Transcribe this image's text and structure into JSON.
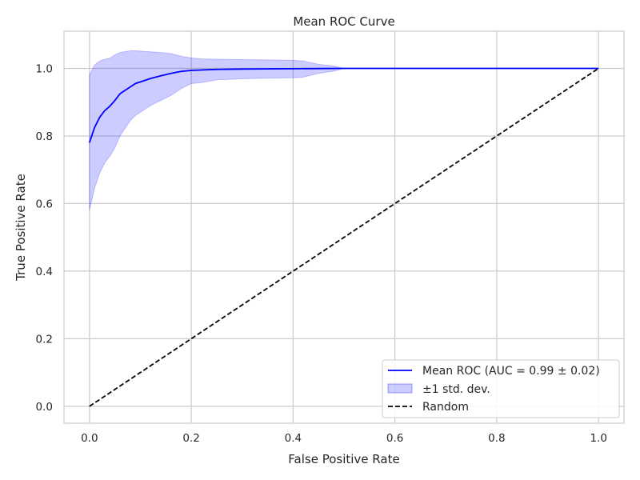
{
  "chart_data": {
    "type": "line",
    "title": "Mean ROC Curve",
    "xlabel": "False Positive Rate",
    "ylabel": "True Positive Rate",
    "xlim": [
      -0.05,
      1.05
    ],
    "ylim": [
      -0.05,
      1.11
    ],
    "grid": true,
    "legend_position": "lower-right",
    "x_ticks": [
      "0.0",
      "0.2",
      "0.4",
      "0.6",
      "0.8",
      "1.0"
    ],
    "y_ticks": [
      "0.0",
      "0.2",
      "0.4",
      "0.6",
      "0.8",
      "1.0"
    ],
    "series": [
      {
        "name": "Mean ROC (AUC = 0.99 ± 0.02)",
        "style": "solid",
        "color": "#0000ff",
        "x": [
          0.0,
          0.01,
          0.02,
          0.03,
          0.04,
          0.05,
          0.06,
          0.08,
          0.09,
          0.1,
          0.12,
          0.14,
          0.16,
          0.18,
          0.2,
          0.25,
          0.3,
          0.4,
          0.5,
          0.6,
          0.7,
          0.8,
          0.9,
          1.0
        ],
        "y": [
          0.78,
          0.825,
          0.855,
          0.875,
          0.888,
          0.905,
          0.925,
          0.945,
          0.955,
          0.96,
          0.97,
          0.978,
          0.985,
          0.991,
          0.994,
          0.997,
          0.998,
          0.999,
          1.0,
          1.0,
          1.0,
          1.0,
          1.0,
          1.0
        ]
      },
      {
        "name": "±1 std. dev.",
        "style": "band",
        "color": "#0000ff",
        "x": [
          0.0,
          0.01,
          0.02,
          0.03,
          0.04,
          0.05,
          0.06,
          0.08,
          0.09,
          0.1,
          0.12,
          0.14,
          0.16,
          0.18,
          0.2,
          0.22,
          0.25,
          0.3,
          0.35,
          0.4,
          0.42,
          0.45,
          0.48,
          0.5,
          0.6,
          0.7,
          0.8,
          0.9,
          1.0
        ],
        "upper": [
          0.98,
          1.01,
          1.022,
          1.027,
          1.03,
          1.04,
          1.047,
          1.052,
          1.052,
          1.051,
          1.049,
          1.047,
          1.044,
          1.036,
          1.031,
          1.028,
          1.027,
          1.026,
          1.025,
          1.024,
          1.022,
          1.012,
          1.007,
          1.0,
          1.0,
          1.0,
          1.0,
          1.0,
          1.0
        ],
        "lower": [
          0.58,
          0.645,
          0.69,
          0.72,
          0.74,
          0.765,
          0.8,
          0.845,
          0.86,
          0.87,
          0.89,
          0.905,
          0.92,
          0.94,
          0.955,
          0.958,
          0.966,
          0.969,
          0.971,
          0.972,
          0.974,
          0.985,
          0.992,
          1.0,
          1.0,
          1.0,
          1.0,
          1.0,
          1.0
        ]
      },
      {
        "name": "Random",
        "style": "dashed",
        "color": "#000000",
        "x": [
          0.0,
          1.0
        ],
        "y": [
          0.0,
          1.0
        ]
      }
    ]
  }
}
